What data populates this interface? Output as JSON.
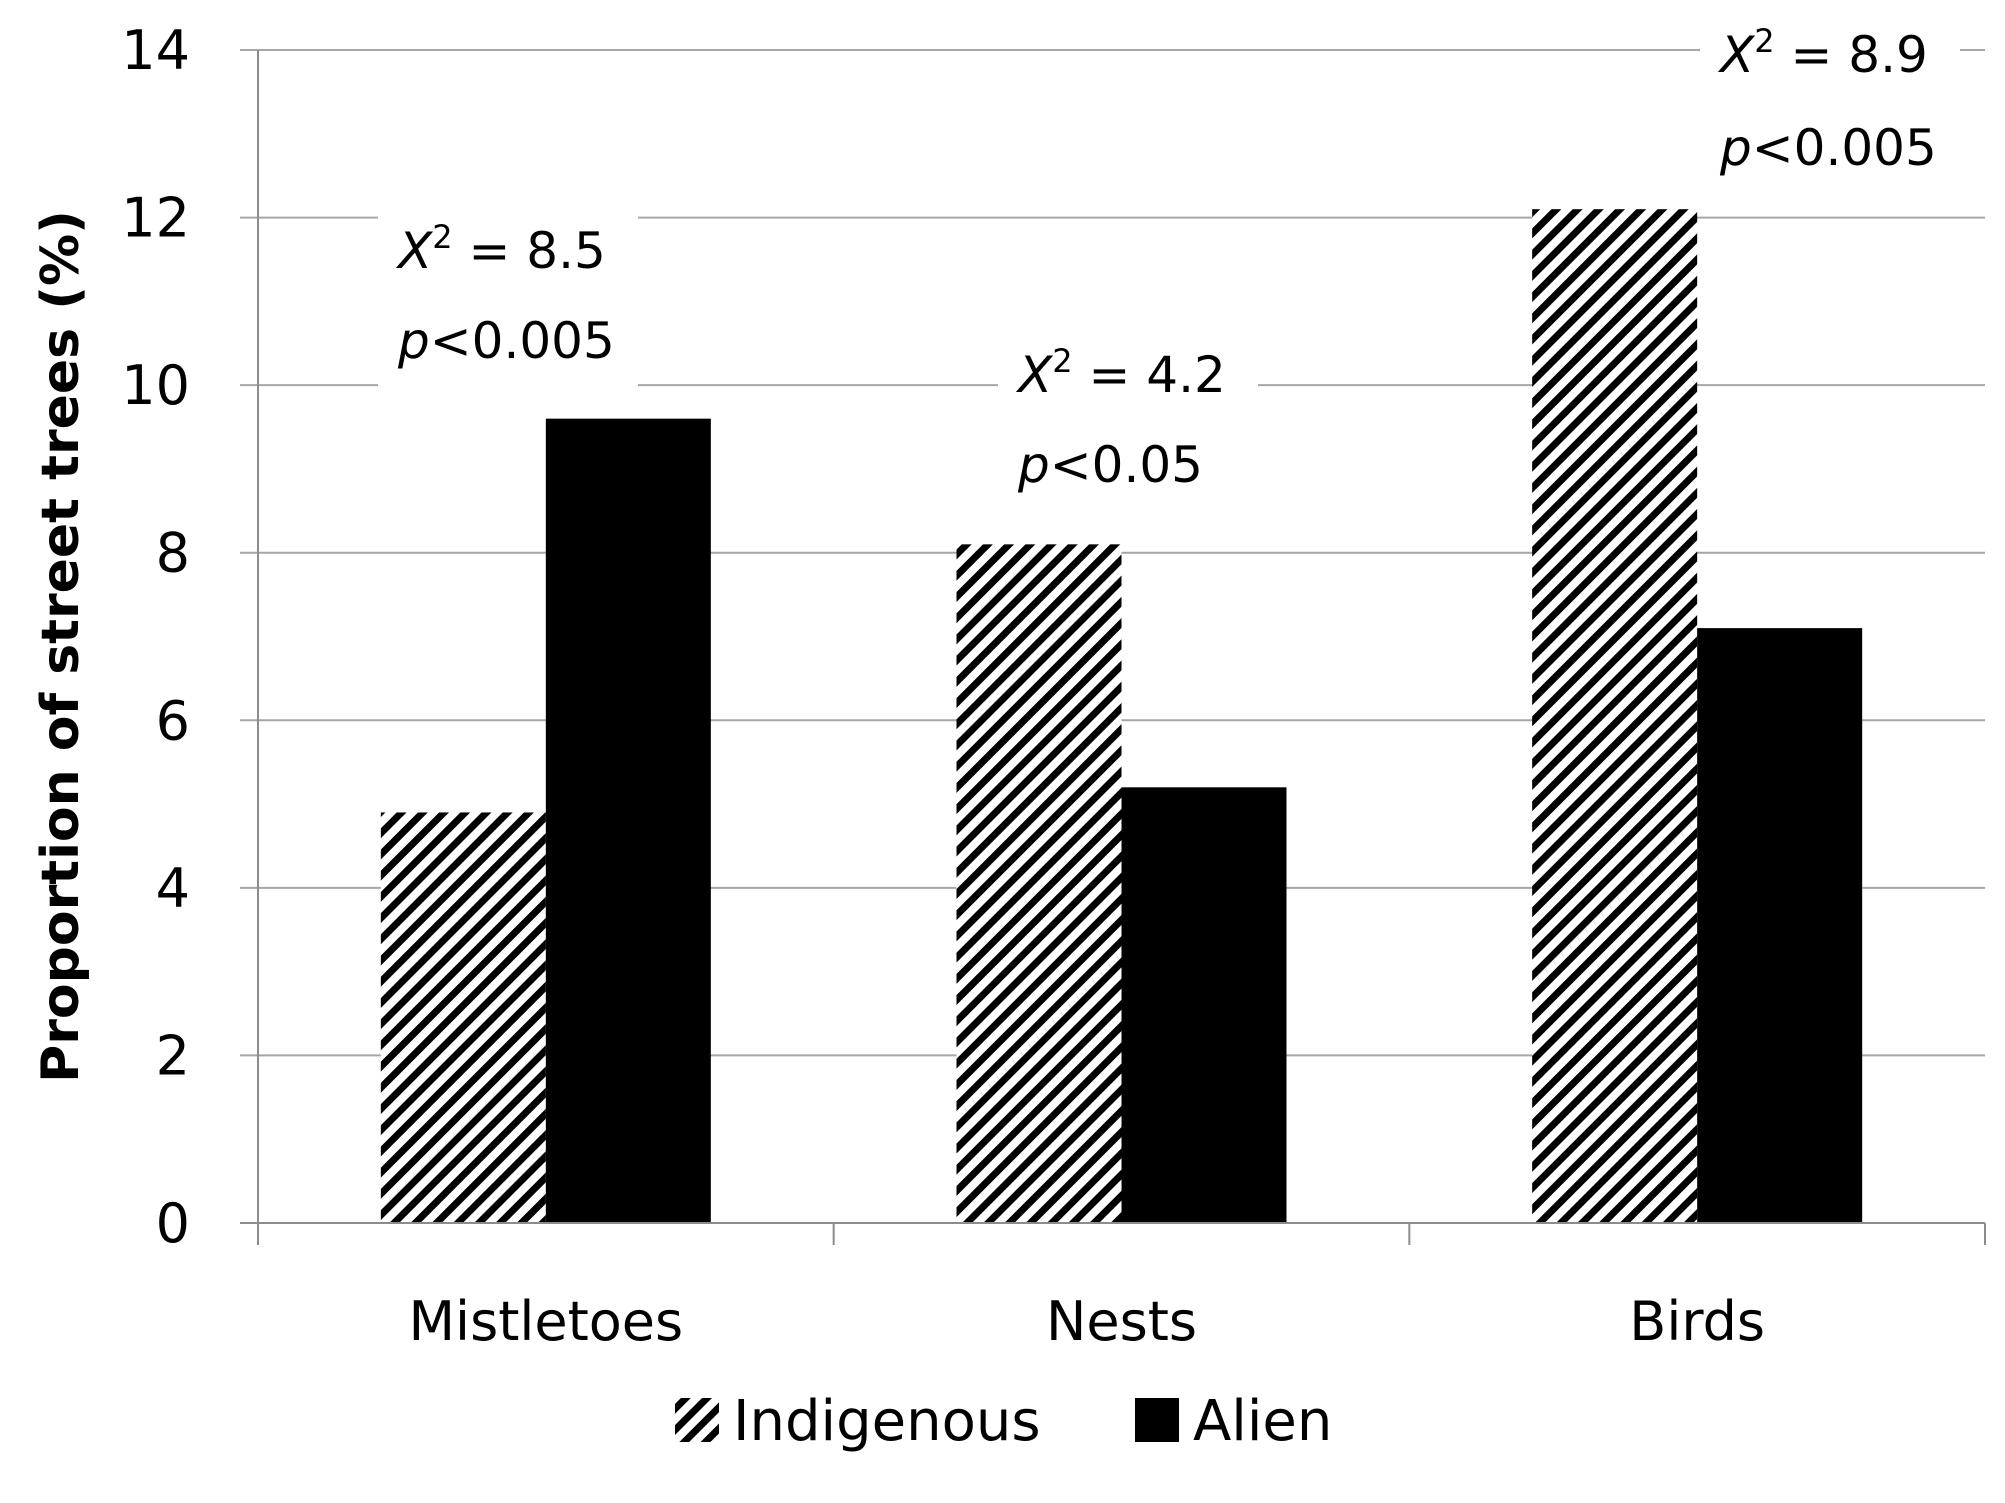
{
  "chart_data": {
    "type": "bar",
    "categories": [
      "Mistletoes",
      "Nests",
      "Birds"
    ],
    "series": [
      {
        "name": "Indigenous",
        "values": [
          4.9,
          8.1,
          12.1
        ],
        "pattern": "diagonal-hatch"
      },
      {
        "name": "Alien",
        "values": [
          9.6,
          5.2,
          7.1
        ],
        "pattern": "solid"
      }
    ],
    "ylabel": "Proportion of street trees (%)",
    "xlabel": "",
    "ylim": [
      0,
      14
    ],
    "yticks": [
      0,
      2,
      4,
      6,
      8,
      10,
      12,
      14
    ],
    "grid": true,
    "legend_position": "bottom-center",
    "annotations": [
      {
        "category": "Mistletoes",
        "stat": "X",
        "sup": "2",
        "stat_value": " = 8.5",
        "p_symbol": "p",
        "p_value": "<0.005"
      },
      {
        "category": "Nests",
        "stat": "X",
        "sup": "2",
        "stat_value": " = 4.2",
        "p_symbol": "p",
        "p_value": "<0.05"
      },
      {
        "category": "Birds",
        "stat": "X",
        "sup": "2",
        "stat_value": " = 8.9",
        "p_symbol": "p",
        "p_value": "<0.005"
      }
    ],
    "colors": {
      "bar": "#000000",
      "grid": "#a6a6a6",
      "axis": "#8c8c8c",
      "background": "#ffffff"
    }
  }
}
